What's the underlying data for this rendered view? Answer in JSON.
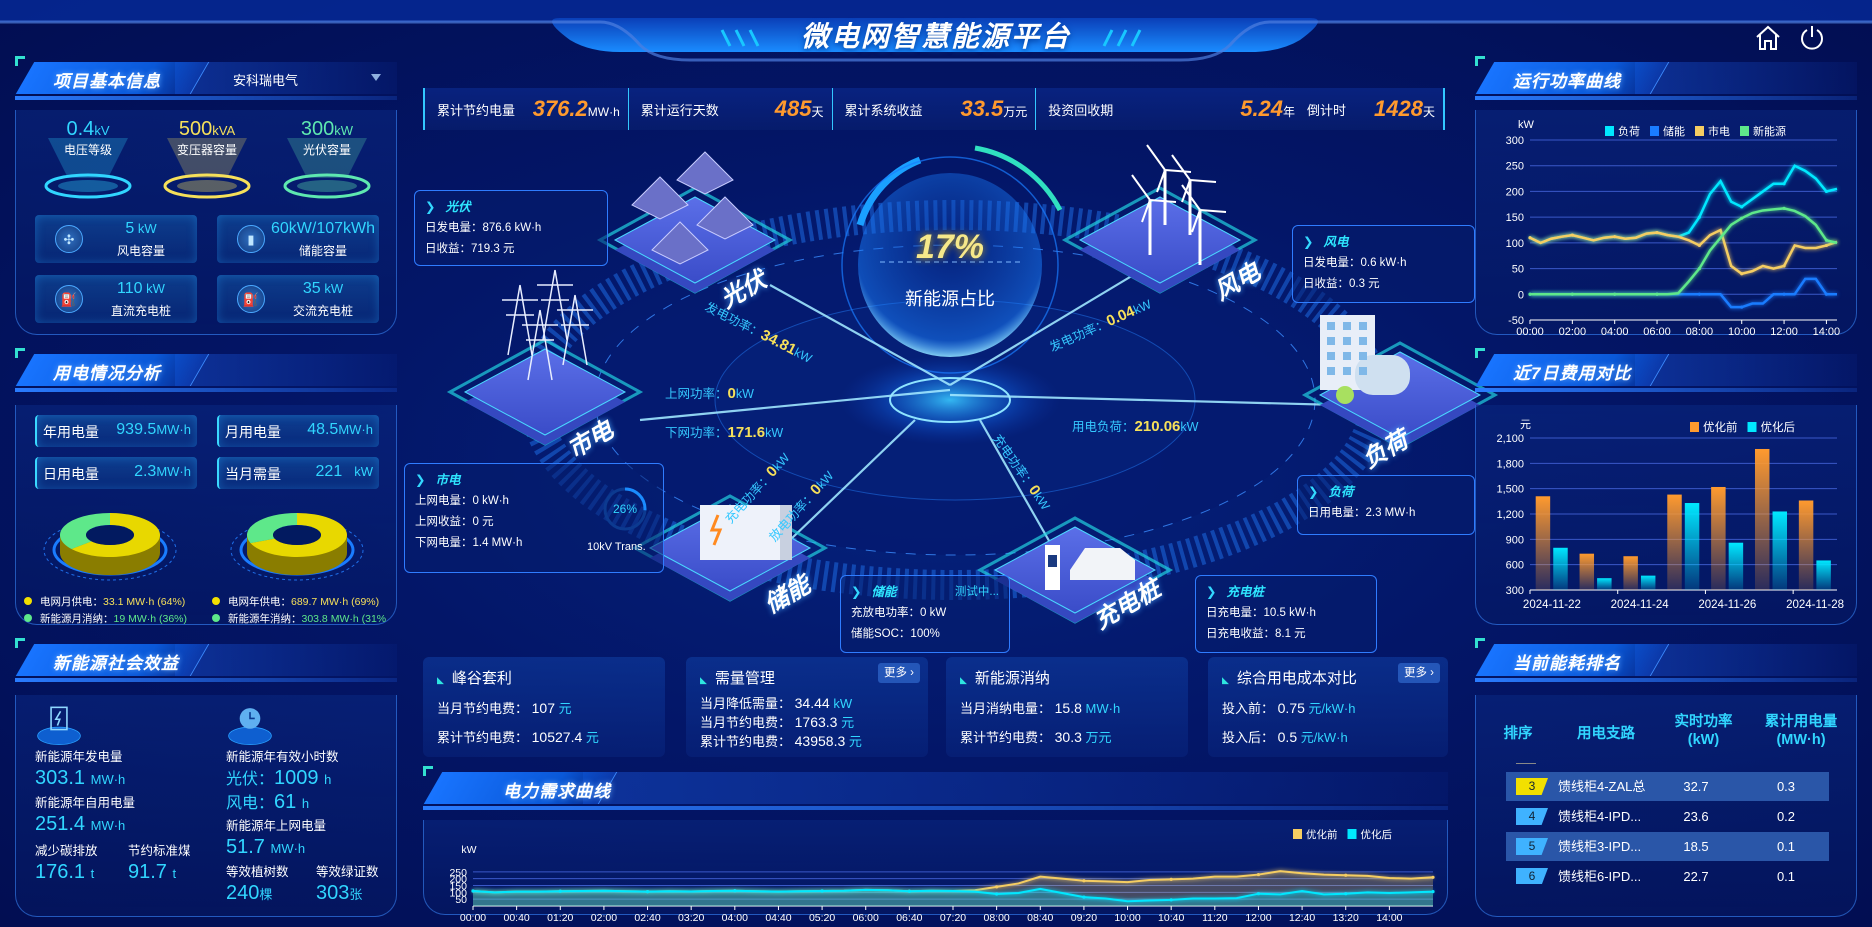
{
  "header": {
    "title": "微电网智慧能源平台",
    "home_icon": "home-icon",
    "power_icon": "power-icon"
  },
  "colors": {
    "cyan": "#31d6ff",
    "yellow": "#f6e05a",
    "green": "#5ee88a",
    "orange": "#ff9a2e",
    "blue": "#1a7cff",
    "bg": "#020e52"
  },
  "project": {
    "title": "项目基本信息",
    "company": "安科瑞电气",
    "metrics": [
      {
        "value": "0.4",
        "unit": "kV",
        "label": "电压等级",
        "color": "#31d6ff"
      },
      {
        "value": "500",
        "unit": "kVA",
        "label": "变压器容量",
        "color": "#f6e05a"
      },
      {
        "value": "300",
        "unit": "kW",
        "label": "光伏容量",
        "color": "#5ee8b0"
      }
    ],
    "cards": [
      {
        "value": "5",
        "unit": " kW",
        "label": "风电容量",
        "icon": "wind-turbine-icon"
      },
      {
        "value": "60kW/107kWh",
        "unit": "",
        "label": "储能容量",
        "icon": "battery-icon"
      },
      {
        "value": "110",
        "unit": " kW",
        "label": "直流充电桩",
        "icon": "charger-icon"
      },
      {
        "value": "35",
        "unit": " kW",
        "label": "交流充电桩",
        "icon": "charger-icon"
      }
    ]
  },
  "usage": {
    "title": "用电情况分析",
    "cards": [
      {
        "label": "年用电量",
        "value": "939.5",
        "unit": "MW·h"
      },
      {
        "label": "月用电量",
        "value": "48.5",
        "unit": "MW·h"
      },
      {
        "label": "日用电量",
        "value": "2.3",
        "unit": "MW·h"
      },
      {
        "label": "当月需量",
        "value": "221",
        "unit": "kW"
      }
    ],
    "donuts": [
      {
        "legend": [
          {
            "label": "电网月供电：",
            "value": "33.1 MW·h (64%)",
            "pct": 64,
            "color": "#f2e000"
          },
          {
            "label": "新能源月消纳：",
            "value": "19 MW·h (36%)",
            "pct": 36,
            "color": "#5ee88a"
          }
        ]
      },
      {
        "legend": [
          {
            "label": "电网年供电：",
            "value": "689.7 MW·h (69%)",
            "pct": 69,
            "color": "#f2e000"
          },
          {
            "label": "新能源年消纳：",
            "value": "303.8 MW·h (31%)",
            "pct": 31,
            "color": "#5ee88a"
          }
        ]
      }
    ]
  },
  "social": {
    "title": "新能源社会效益",
    "gen_label": "新能源年发电量",
    "gen_value": "303.1",
    "gen_unit": "MW·h",
    "hours_label": "新能源年有效小时数",
    "pv_label": "光伏：",
    "pv_value": "1009",
    "pv_unit": "h",
    "wind_label": "风电：",
    "wind_value": "61",
    "wind_unit": "h",
    "self_label": "新能源年自用电量",
    "self_value": "251.4",
    "self_unit": "MW·h",
    "grid_label": "新能源年上网电量",
    "grid_value": "51.7",
    "grid_unit": "MW·h",
    "carbon_label": "减少碳排放",
    "carbon_value": "176.1",
    "carbon_unit": "t",
    "coal_label": "节约标准煤",
    "coal_value": "91.7",
    "coal_unit": "t",
    "tree_label": "等效植树数",
    "tree_value": "240",
    "tree_unit": "棵",
    "cert_label": "等效绿证数",
    "cert_value": "303",
    "cert_unit": "张"
  },
  "stats": [
    {
      "label": "累计节约电量",
      "value": "376.2",
      "unit": "MW·h"
    },
    {
      "label": "累计运行天数",
      "value": "485",
      "unit": "天"
    },
    {
      "label": "累计系统收益",
      "value": "33.5",
      "unit": "万元"
    },
    {
      "label": "投资回收期",
      "value": "5.24",
      "unit": "年"
    },
    {
      "label": "倒计时",
      "value": "1428",
      "unit": "天"
    }
  ],
  "hub": {
    "ratio": "17%",
    "label": "新能源占比"
  },
  "nodes": {
    "pv": "光伏",
    "wind": "风电",
    "grid": "市电",
    "load": "负荷",
    "storage": "储能",
    "charger": "充电桩"
  },
  "flows": {
    "pv": {
      "label": "发电功率：",
      "value": "34.81",
      "unit": "kW"
    },
    "wind": {
      "label": "发电功率：",
      "value": "0.04",
      "unit": "kW"
    },
    "grid_up": {
      "label": "上网功率：",
      "value": "0",
      "unit": "kW"
    },
    "grid_down": {
      "label": "下网功率：",
      "value": "171.6",
      "unit": "kW"
    },
    "load": {
      "label": "用电负荷：",
      "value": "210.06",
      "unit": "kW"
    },
    "charge": {
      "label": "充电功率：",
      "value": "0",
      "unit": "kW"
    },
    "discharge": {
      "label": "放电功率：",
      "value": "0",
      "unit": "kW"
    },
    "ev": {
      "label": "充电功率：",
      "value": "0",
      "unit": "kW"
    }
  },
  "boxes": {
    "pv": {
      "title": "光伏",
      "lines": [
        "日发电量：876.6 kW·h",
        "日收益：719.3 元"
      ]
    },
    "wind": {
      "title": "风电",
      "lines": [
        "日发电量：0.6 kW·h",
        "日收益：0.3 元"
      ]
    },
    "grid": {
      "title": "市电",
      "lines": [
        "上网电量：0 kW·h",
        "上网收益：0 元",
        "下网电量：1.4 MW·h"
      ],
      "ring": "26%",
      "ring_pct": 26,
      "trans": "10kV Trans."
    },
    "load": {
      "title": "负荷",
      "lines": [
        "日用电量：2.3 MW·h"
      ]
    },
    "storage": {
      "title": "储能",
      "status": "测试中...",
      "lines": [
        "充放电功率：0 kW",
        "储能SOC：100%"
      ]
    },
    "charger": {
      "title": "充电桩",
      "lines": [
        "日充电量：10.5 kW·h",
        "日充电收益：8.1 元"
      ]
    }
  },
  "cards": [
    {
      "title": "峰谷套利",
      "rows": [
        {
          "label": "当月节约电费：",
          "value": "107",
          "unit": "元"
        },
        {
          "label": "累计节约电费：",
          "value": "10527.4",
          "unit": "元"
        }
      ]
    },
    {
      "title": "需量管理",
      "more": "更多 ›",
      "rows": [
        {
          "label": "当月降低需量：",
          "value": "34.44",
          "unit": "kW"
        },
        {
          "label": "当月节约电费：",
          "value": "1763.3",
          "unit": "元"
        },
        {
          "label": "累计节约电费：",
          "value": "43958.3",
          "unit": "元"
        }
      ]
    },
    {
      "title": "新能源消纳",
      "rows": [
        {
          "label": "当月消纳电量：",
          "value": "15.8",
          "unit": "MW·h"
        },
        {
          "label": "累计节约电费：",
          "value": "30.3",
          "unit": "万元"
        }
      ]
    },
    {
      "title": "综合用电成本对比",
      "more": "更多 ›",
      "rows": [
        {
          "label": "投入前：",
          "value": "0.75",
          "unit": "元/kW·h"
        },
        {
          "label": "投入后：",
          "value": "0.5",
          "unit": "元/kW·h"
        }
      ]
    }
  ],
  "demand": {
    "title": "电力需求曲线"
  },
  "power": {
    "title": "运行功率曲线"
  },
  "cost": {
    "title": "近7日费用对比"
  },
  "ranking": {
    "title": "当前能耗排名",
    "headers": [
      "排序",
      "用电支路",
      "实时功率\n(kW)",
      "累计用电量\n(MW·h)"
    ],
    "rows": [
      {
        "rank": "3",
        "name": "馈线柜4-ZAL总",
        "power": "32.7",
        "energy": "0.3",
        "color": "#f2e000"
      },
      {
        "rank": "4",
        "name": "馈线柜4-IPD...",
        "power": "23.6",
        "energy": "0.2",
        "color": "#3fb2ff"
      },
      {
        "rank": "5",
        "name": "馈线柜3-IPD...",
        "power": "18.5",
        "energy": "0.1",
        "color": "#3fb2ff"
      },
      {
        "rank": "6",
        "name": "馈线柜6-IPD...",
        "power": "22.7",
        "energy": "0.1",
        "color": "#3fb2ff"
      }
    ]
  },
  "chart_data": [
    {
      "type": "line",
      "id": "power",
      "ylabel": "kW",
      "ylim": [
        -50,
        300
      ],
      "yticks": [
        -50,
        0,
        50,
        100,
        150,
        200,
        250,
        300
      ],
      "grid": true,
      "legend": "top",
      "x": [
        "00:00",
        "00:30",
        "01:00",
        "01:30",
        "02:00",
        "02:30",
        "03:00",
        "03:30",
        "04:00",
        "04:30",
        "05:00",
        "05:30",
        "06:00",
        "06:30",
        "07:00",
        "07:30",
        "08:00",
        "08:30",
        "09:00",
        "09:30",
        "10:00",
        "10:30",
        "11:00",
        "11:30",
        "12:00",
        "12:30",
        "13:00",
        "13:30",
        "14:00",
        "14:30"
      ],
      "xticks": [
        "00:00",
        "02:00",
        "04:00",
        "06:00",
        "08:00",
        "10:00",
        "12:00",
        "14:00"
      ],
      "series": [
        {
          "name": "负荷",
          "color": "#00e8ff",
          "values": [
            110,
            100,
            108,
            112,
            115,
            110,
            105,
            110,
            112,
            108,
            110,
            118,
            120,
            115,
            112,
            120,
            150,
            195,
            220,
            180,
            170,
            185,
            200,
            215,
            215,
            250,
            240,
            225,
            200,
            205
          ]
        },
        {
          "name": "储能",
          "color": "#1a7cff",
          "values": [
            0,
            0,
            0,
            0,
            0,
            0,
            0,
            0,
            0,
            0,
            0,
            0,
            0,
            0,
            0,
            0,
            0,
            0,
            0,
            -25,
            -25,
            -18,
            -18,
            0,
            0,
            0,
            30,
            30,
            0,
            0
          ]
        },
        {
          "name": "市电",
          "color": "#f5cd62",
          "values": [
            110,
            100,
            108,
            112,
            115,
            110,
            105,
            110,
            112,
            108,
            110,
            118,
            120,
            115,
            112,
            105,
            95,
            115,
            125,
            55,
            40,
            45,
            55,
            50,
            55,
            95,
            90,
            90,
            95,
            102
          ]
        },
        {
          "name": "新能源",
          "color": "#5ee88a",
          "values": [
            0,
            0,
            0,
            0,
            0,
            0,
            0,
            0,
            0,
            0,
            0,
            0,
            0,
            0,
            2,
            25,
            50,
            85,
            110,
            135,
            148,
            158,
            163,
            165,
            167,
            162,
            152,
            135,
            105,
            100
          ]
        }
      ]
    },
    {
      "type": "bar",
      "id": "cost",
      "ylabel": "元",
      "ylim": [
        300,
        2100
      ],
      "yticks": [
        300,
        600,
        900,
        1200,
        1500,
        1800,
        2100
      ],
      "grid": true,
      "legend": "top-right",
      "categories": [
        "2024-11-22",
        "2024-11-23",
        "2024-11-24",
        "2024-11-25",
        "2024-11-26",
        "2024-11-27",
        "2024-11-28"
      ],
      "xticks": [
        "2024-11-22",
        "2024-11-24",
        "2024-11-26",
        "2024-11-28"
      ],
      "series": [
        {
          "name": "优化前",
          "color": "#ff9a2e",
          "values": [
            1410,
            730,
            700,
            1430,
            1520,
            1970,
            1360
          ]
        },
        {
          "name": "优化后",
          "color": "#00e8ff",
          "values": [
            800,
            440,
            470,
            1330,
            860,
            1230,
            650
          ]
        }
      ]
    },
    {
      "type": "area",
      "id": "demand",
      "ylabel": "kW",
      "ylim": [
        0,
        300
      ],
      "yticks": [
        50,
        100,
        150,
        200,
        250
      ],
      "grid": true,
      "legend": "top-right",
      "x": [
        "00:00",
        "00:20",
        "00:40",
        "01:00",
        "01:20",
        "01:40",
        "02:00",
        "02:20",
        "02:40",
        "03:00",
        "03:20",
        "03:40",
        "04:00",
        "04:20",
        "04:40",
        "05:00",
        "05:20",
        "05:40",
        "06:00",
        "06:20",
        "06:40",
        "07:00",
        "07:20",
        "07:40",
        "08:00",
        "08:20",
        "08:40",
        "09:00",
        "09:20",
        "09:40",
        "10:00",
        "10:20",
        "10:40",
        "11:00",
        "11:20",
        "11:40",
        "12:00",
        "12:20",
        "12:40",
        "13:00",
        "13:20",
        "13:40",
        "14:00",
        "14:20",
        "14:40"
      ],
      "xticks": [
        "00:00",
        "00:40",
        "01:20",
        "02:00",
        "02:40",
        "03:20",
        "04:00",
        "04:40",
        "05:20",
        "06:00",
        "06:40",
        "07:20",
        "08:00",
        "08:40",
        "09:20",
        "10:00",
        "10:40",
        "11:20",
        "12:00",
        "12:40",
        "13:20",
        "14:00"
      ],
      "series": [
        {
          "name": "优化前",
          "color": "#f5cd62",
          "values": [
            110,
            100,
            105,
            105,
            108,
            110,
            112,
            108,
            105,
            108,
            106,
            110,
            112,
            108,
            105,
            108,
            110,
            112,
            118,
            115,
            108,
            112,
            110,
            115,
            140,
            165,
            215,
            200,
            185,
            180,
            175,
            190,
            195,
            200,
            215,
            215,
            230,
            255,
            240,
            230,
            225,
            220,
            205,
            200,
            210
          ]
        },
        {
          "name": "优化后",
          "color": "#00e8ff",
          "values": [
            110,
            100,
            105,
            105,
            108,
            110,
            112,
            108,
            105,
            108,
            106,
            110,
            112,
            108,
            105,
            108,
            110,
            112,
            118,
            115,
            108,
            112,
            110,
            105,
            88,
            95,
            125,
            95,
            65,
            55,
            35,
            40,
            45,
            55,
            55,
            58,
            90,
            85,
            110,
            85,
            90,
            100,
            95,
            100,
            105
          ]
        }
      ]
    }
  ]
}
